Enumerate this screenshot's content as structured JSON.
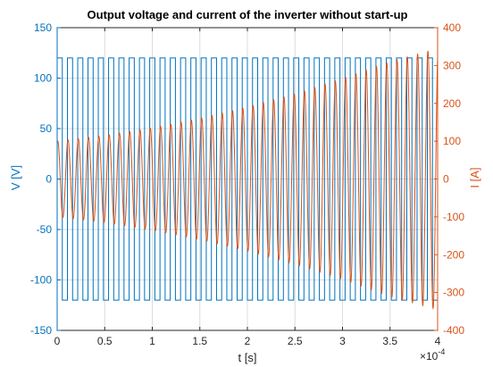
{
  "chart_data": {
    "type": "line",
    "title": "Output voltage and current of the inverter without start-up",
    "xlabel": "t [s]",
    "x_exponent_label": "×10",
    "x_exponent_power": "-4",
    "xlim": [
      0,
      4
    ],
    "x_ticks": [
      "0",
      "0.5",
      "1",
      "1.5",
      "2",
      "2.5",
      "3",
      "3.5",
      "4"
    ],
    "y_left": {
      "label": "V [V]",
      "lim": [
        -150,
        150
      ],
      "ticks": [
        "-150",
        "-100",
        "-50",
        "0",
        "50",
        "100",
        "150"
      ],
      "color": "#0072bd"
    },
    "y_right": {
      "label": "I [A]",
      "lim": [
        -400,
        400
      ],
      "ticks": [
        "-400",
        "-300",
        "-200",
        "-100",
        "0",
        "100",
        "200",
        "300",
        "400"
      ],
      "color": "#d95319"
    },
    "grid": true,
    "series": [
      {
        "signal": "voltage",
        "axis": "left",
        "color": "#0072bd",
        "waveform": "square",
        "amplitude": 120,
        "cycles": 37,
        "start_level": 0
      },
      {
        "signal": "current",
        "axis": "right",
        "color": "#d95319",
        "waveform": "growing-sine",
        "cycles": 37,
        "peak_envelope": [
          {
            "t": 0,
            "peak": 100
          },
          {
            "t": 0.5,
            "peak": 115
          },
          {
            "t": 1,
            "peak": 135
          },
          {
            "t": 1.5,
            "peak": 160
          },
          {
            "t": 2,
            "peak": 190
          },
          {
            "t": 2.5,
            "peak": 225
          },
          {
            "t": 3,
            "peak": 265
          },
          {
            "t": 3.5,
            "peak": 310
          },
          {
            "t": 4,
            "peak": 345
          }
        ]
      }
    ]
  }
}
